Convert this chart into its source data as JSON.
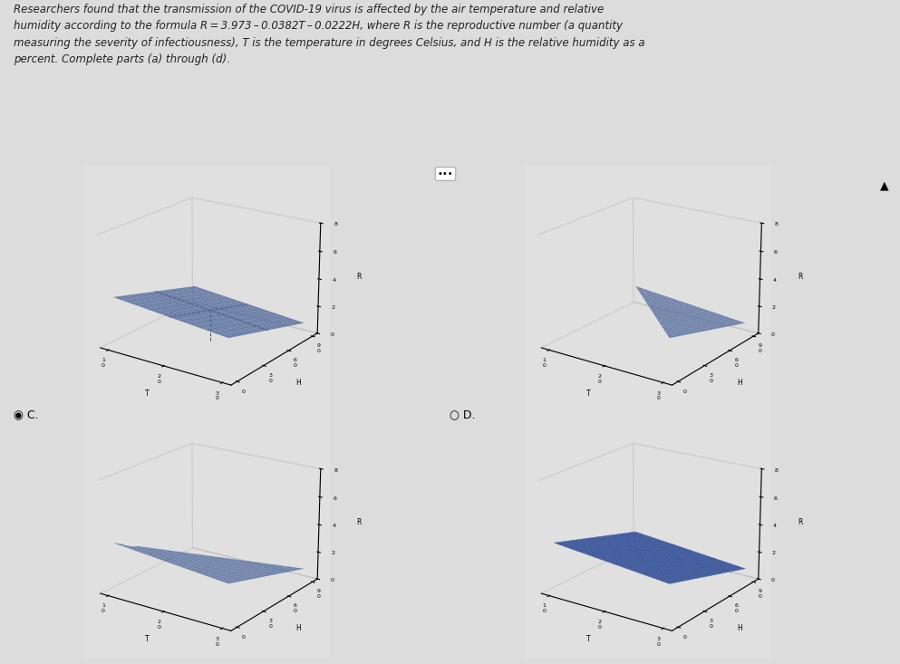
{
  "title_line1": "Researchers found that the transmission of the COVID-19 virus is affected by the air temperature and relative",
  "title_line2": "humidity according to the formula R = 3.973 – 0.0382T – 0.0222H, where R is the reproductive number (a quantity",
  "title_line3": "measuring the severity of infectiousness), T is the temperature in degrees Celsius, and H is the relative humidity as a",
  "title_line4": "percent. Complete parts (a) through (d).",
  "formula_a": 3.973,
  "formula_b": -0.0382,
  "formula_c": -0.0222,
  "surf_color_main": "#6688cc",
  "surf_color_d": "#4466bb",
  "bg_color": "#e8e8e8",
  "text_color": "#222222",
  "selected": "C"
}
